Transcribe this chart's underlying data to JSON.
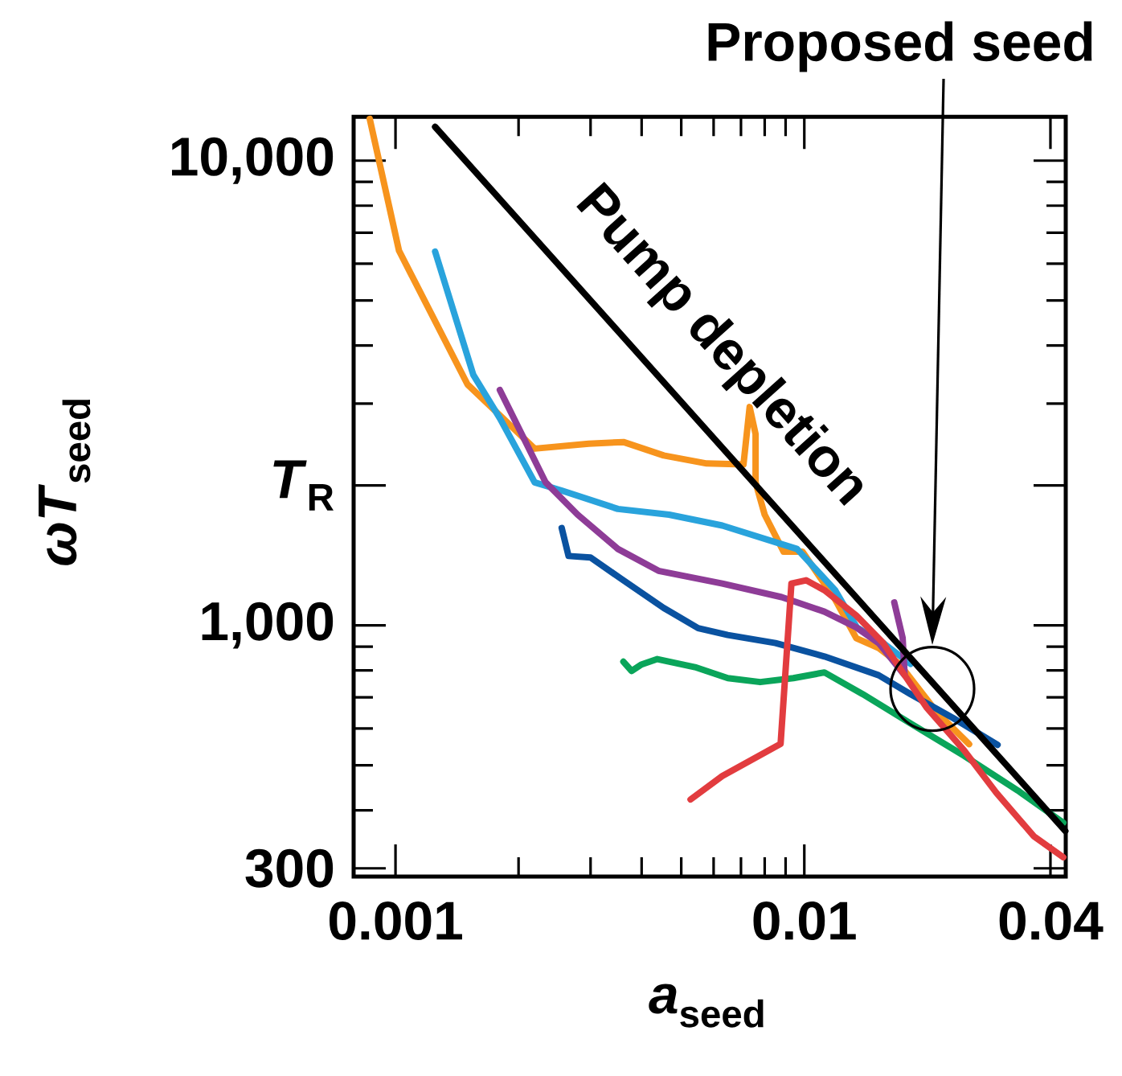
{
  "chart_data": {
    "type": "line",
    "xlabel": "*a*$_{seed}$",
    "ylabel": "*ωT*$_{seed}$",
    "log": "xy",
    "marker": "none",
    "line_style": "solid",
    "xlim": [
      0.00079,
      0.0436
    ],
    "ylim": [
      288,
      12420
    ],
    "xticks": [
      0.001,
      0.01,
      0.04,
      {
        "value": 0.002,
        "label": null
      },
      {
        "value": 0.003,
        "label": null
      },
      {
        "value": 0.004,
        "label": null
      },
      {
        "value": 0.005,
        "label": null
      },
      {
        "value": 0.006,
        "label": null
      },
      {
        "value": 0.007,
        "label": null
      },
      {
        "value": 0.008,
        "label": null
      },
      {
        "value": 0.009,
        "label": null
      }
    ],
    "yticks": [
      300,
      {
        "value": 1000,
        "label": "1,000"
      },
      {
        "value": 2000,
        "label": "*T*$_{R}$"
      },
      {
        "value": 10000,
        "label": "10,000"
      },
      {
        "value": 400,
        "label": null
      },
      {
        "value": 500,
        "label": null
      },
      {
        "value": 600,
        "label": null
      },
      {
        "value": 700,
        "label": null
      },
      {
        "value": 800,
        "label": null
      },
      {
        "value": 900,
        "label": null
      },
      {
        "value": 3000,
        "label": null
      },
      {
        "value": 4000,
        "label": null
      },
      {
        "value": 5000,
        "label": null
      },
      {
        "value": 6000,
        "label": null
      },
      {
        "value": 7000,
        "label": null
      },
      {
        "value": 8000,
        "label": null
      },
      {
        "value": 9000,
        "label": null
      }
    ],
    "series": [
      {
        "color": "#f7941d",
        "x": [
          0.000865,
          0.00102,
          0.0015,
          0.00219,
          0.00297,
          0.00361,
          0.00453,
          0.00577,
          0.0071,
          0.00735,
          0.0076,
          0.0076,
          0.008,
          0.0089,
          0.0099,
          0.0119,
          0.0134,
          0.0152,
          0.0171,
          0.0211,
          0.0253
        ],
        "values": [
          12300,
          6400,
          3300,
          2400,
          2460,
          2480,
          2320,
          2230,
          2220,
          2950,
          2580,
          2030,
          1730,
          1440,
          1440,
          1136,
          938,
          894,
          826,
          650,
          555
        ]
      },
      {
        "color": "#29a3dc",
        "x": [
          0.00125,
          0.00155,
          0.0018,
          0.00219,
          0.00255,
          0.0035,
          0.00467,
          0.0063,
          0.0096,
          0.0119,
          0.01344,
          0.0156,
          0.0182
        ],
        "values": [
          6370,
          3460,
          2790,
          2030,
          1950,
          1780,
          1730,
          1640,
          1460,
          1190,
          990,
          916,
          826
        ]
      },
      {
        "color": "#8e3c97",
        "x": [
          0.0018,
          0.00233,
          0.00279,
          0.0035,
          0.0044,
          0.0063,
          0.0088,
          0.0112,
          0.0134,
          0.0152,
          0.0176,
          0.0174,
          0.0166
        ],
        "values": [
          3210,
          2030,
          1730,
          1460,
          1310,
          1230,
          1150,
          1070,
          990,
          916,
          781,
          940,
          1120
        ]
      },
      {
        "color": "#0a52a0",
        "x": [
          0.00255,
          0.00265,
          0.003,
          0.00356,
          0.00453,
          0.0055,
          0.0065,
          0.0085,
          0.0112,
          0.0152,
          0.0182,
          0.0231,
          0.0297
        ],
        "values": [
          1620,
          1410,
          1400,
          1260,
          1090,
          986,
          953,
          916,
          857,
          781,
          711,
          632,
          553
        ]
      },
      {
        "color": "#0aa55a",
        "x": [
          0.00361,
          0.00378,
          0.004,
          0.00437,
          0.0054,
          0.0065,
          0.0078,
          0.0094,
          0.0112,
          0.0139,
          0.0182,
          0.0246,
          0.0333,
          0.043
        ],
        "values": [
          835,
          798,
          824,
          846,
          813,
          770,
          755,
          770,
          792,
          711,
          615,
          524,
          441,
          376
        ]
      },
      {
        "color": "#e23c3f",
        "x": [
          0.00527,
          0.0063,
          0.00875,
          0.0093,
          0.0101,
          0.0112,
          0.0134,
          0.0156,
          0.0176,
          0.0199,
          0.0246,
          0.0295,
          0.0364,
          0.043
        ],
        "values": [
          422,
          474,
          556,
          1230,
          1250,
          1190,
          1050,
          916,
          781,
          666,
          538,
          436,
          352,
          317
        ]
      },
      {
        "name": "Pump depletion",
        "color": "#000000",
        "x": [
          0.00125,
          0.0435
        ],
        "values": [
          11820,
          361
        ]
      }
    ],
    "annotations": [
      "Proposed seed"
    ]
  }
}
